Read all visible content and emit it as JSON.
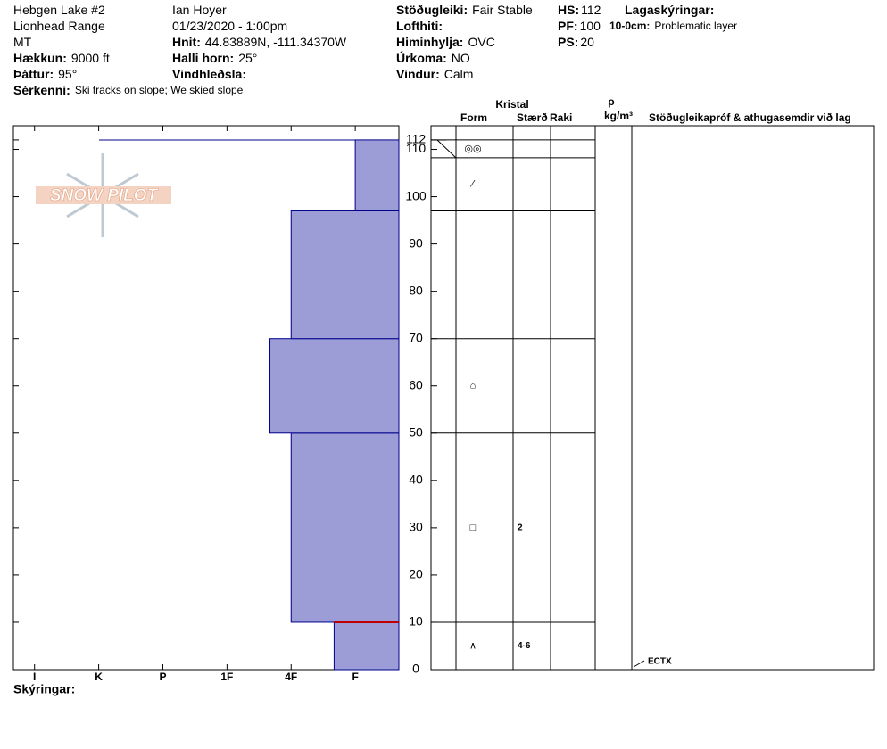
{
  "header": {
    "columns": [
      [
        {
          "text": "Hebgen Lake #2"
        },
        {
          "text": "Lionhead Range"
        },
        {
          "text": "MT"
        },
        {
          "label": "Hækkun:",
          "value": "9000 ft"
        },
        {
          "label": "Þáttur:",
          "value": "95°"
        },
        {
          "label": "Sérkenni:",
          "value": "Ski tracks on slope; We skied slope"
        }
      ],
      [
        {
          "text": "Ian Hoyer"
        },
        {
          "text": "01/23/2020 - 1:00pm"
        },
        {
          "label": "Hnit:",
          "value": "44.83889N, -111.34370W"
        },
        {
          "label": "Halli horn:",
          "value": "25°"
        },
        {
          "label": "Vindhleðsla:"
        }
      ],
      [
        {
          "label": "Stöðugleiki:",
          "value": "Fair Stable"
        },
        {
          "label": "Lofthiti:"
        },
        {
          "label": "Himinhylja:",
          "value": "OVC"
        },
        {
          "label": "Úrkoma:",
          "value": "NO"
        },
        {
          "label": "Vindur:",
          "value": "Calm"
        }
      ],
      [
        {
          "label": "HS:",
          "value": "112"
        },
        {
          "label": "PF:",
          "value": "100"
        },
        {
          "label": "PS:",
          "value": "20"
        }
      ],
      [
        {
          "label": "Lagaskýringar:"
        },
        {
          "label": "10-0cm:",
          "value": "Problematic layer"
        }
      ]
    ]
  },
  "logo": "SNOW PILOT",
  "chart_data": {
    "type": "snow-profile",
    "ylim": [
      0,
      115
    ],
    "yticks": [
      0,
      10,
      20,
      30,
      40,
      50,
      60,
      70,
      80,
      90,
      100,
      110,
      112
    ],
    "xlim": [
      6.33,
      0.32
    ],
    "xticks": [
      {
        "value": 6,
        "label": "I"
      },
      {
        "value": 5,
        "label": "K"
      },
      {
        "value": 4,
        "label": "P"
      },
      {
        "value": 3,
        "label": "1F"
      },
      {
        "value": 2,
        "label": "4F"
      },
      {
        "value": 1,
        "label": "F"
      }
    ],
    "color": "#9c9cd7",
    "layers": [
      {
        "bottom": 0,
        "top": 10,
        "hardness": 1.33
      },
      {
        "bottom": 10,
        "top": 50,
        "hardness": 2
      },
      {
        "bottom": 50,
        "top": 70,
        "hardness": 2.33
      },
      {
        "bottom": 70,
        "top": 97,
        "hardness": 2
      },
      {
        "bottom": 97,
        "top": 112,
        "hardness": 1
      }
    ],
    "table": {
      "header": {
        "crystal": "Kristal",
        "form": "Form",
        "size": "Stærð",
        "moisture": "Raki",
        "rho": "ρ",
        "density_unit": "kg/m³",
        "tests": "Stöðugleikapróf & athugasemdir við lag"
      },
      "rows": [
        {
          "top": 112,
          "bottom": 110,
          "form": "◎◎"
        },
        {
          "top": 110,
          "bottom": 97,
          "form": "⁄"
        },
        {
          "top": 97,
          "bottom": 70
        },
        {
          "top": 70,
          "bottom": 50,
          "form": "⌂"
        },
        {
          "top": 50,
          "bottom": 10,
          "form": "□",
          "size": "2"
        },
        {
          "top": 10,
          "bottom": 0,
          "form": "∧",
          "size": "4-6"
        }
      ]
    },
    "tests": [
      {
        "depth": 0,
        "label": "ECTX"
      }
    ]
  },
  "footer": "Skýringar:"
}
